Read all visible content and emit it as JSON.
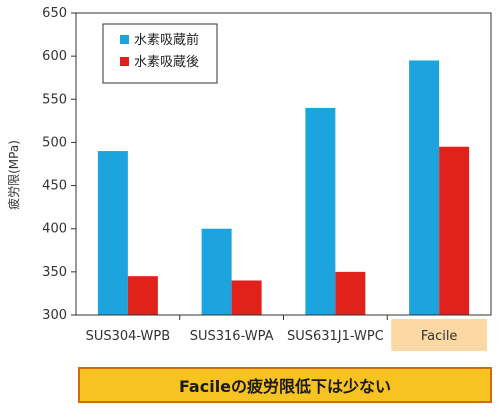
{
  "chart_data": {
    "type": "bar",
    "categories": [
      "SUS304-WPB",
      "SUS316-WPA",
      "SUS631J1-WPC",
      "Facile"
    ],
    "series": [
      {
        "name": "水素吸蔵前",
        "color": "#1da3de",
        "values": [
          490,
          400,
          540,
          595
        ]
      },
      {
        "name": "水素吸蔵後",
        "color": "#e1211c",
        "values": [
          345,
          340,
          350,
          495
        ]
      }
    ],
    "xlabel": "",
    "ylabel": "疲労限(MPa)",
    "ylim": [
      300,
      650
    ],
    "yticks": [
      300,
      350,
      400,
      450,
      500,
      550,
      600,
      650
    ],
    "grid": false,
    "legend_position": "top-left",
    "highlight_category": "Facile",
    "highlight_color": "#fcd9a4"
  },
  "banner": {
    "text": "Facileの疲労限低下は少ない",
    "background": "#f6c321",
    "border": "#d46a12"
  }
}
